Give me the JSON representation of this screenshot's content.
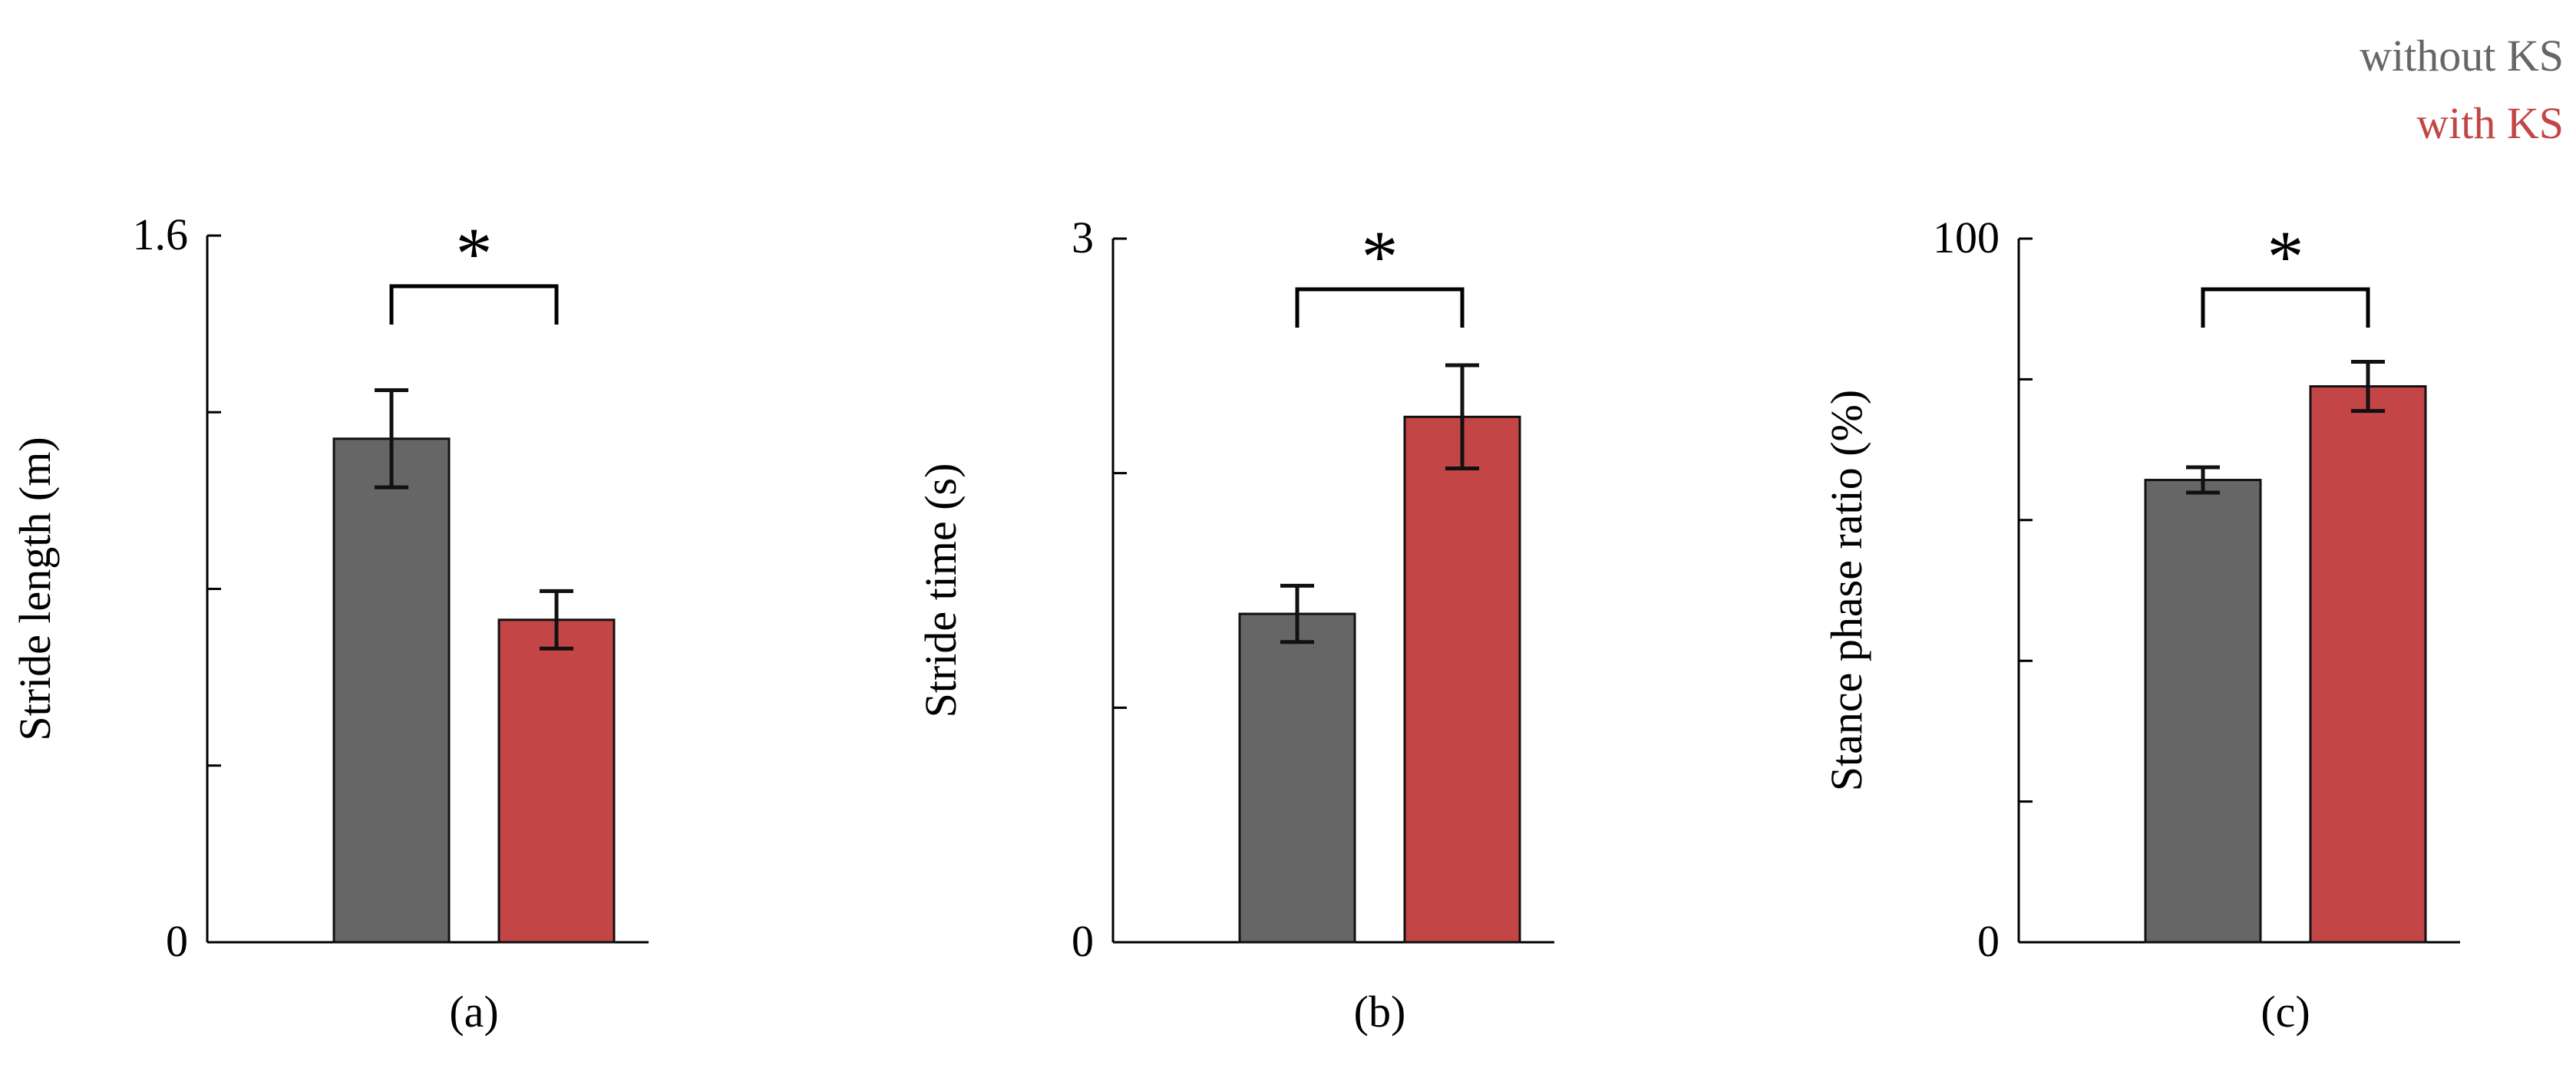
{
  "legend": {
    "items": [
      {
        "label": "without KS",
        "color": "#666666"
      },
      {
        "label": "with KS",
        "color": "#c44545"
      }
    ]
  },
  "chart_data": [
    {
      "type": "bar",
      "panel_label": "(a)",
      "categories": [
        "without KS",
        "with KS"
      ],
      "series": [
        {
          "values": [
            1.14,
            0.73
          ]
        }
      ],
      "errors": [
        0.11,
        0.065
      ],
      "ylabel": "Stride length (m)",
      "ylim": [
        0,
        1.6
      ],
      "ytick_values": [
        0,
        0.4,
        0.8,
        1.2,
        1.6
      ],
      "ytick_labels": [
        "0",
        "1.6"
      ],
      "significance": {
        "pair": [
          0,
          1
        ],
        "label": "*"
      },
      "colors": [
        "#666666",
        "#c44545"
      ],
      "grid": false
    },
    {
      "type": "bar",
      "panel_label": "(b)",
      "categories": [
        "without KS",
        "with KS"
      ],
      "series": [
        {
          "values": [
            1.4,
            2.24
          ]
        }
      ],
      "errors": [
        0.12,
        0.22
      ],
      "ylabel": "Stride time (s)",
      "ylim": [
        0,
        3
      ],
      "ytick_values": [
        0,
        1,
        2,
        3
      ],
      "ytick_labels": [
        "0",
        "3"
      ],
      "significance": {
        "pair": [
          0,
          1
        ],
        "label": "*"
      },
      "colors": [
        "#666666",
        "#c44545"
      ],
      "grid": false
    },
    {
      "type": "bar",
      "panel_label": "(c)",
      "categories": [
        "without KS",
        "with KS"
      ],
      "series": [
        {
          "values": [
            65.7,
            79
          ]
        }
      ],
      "errors": [
        1.8,
        3.5
      ],
      "ylabel": "Stance phase ratio (%)",
      "ylim": [
        0,
        100
      ],
      "ytick_values": [
        0,
        20,
        40,
        60,
        80,
        100
      ],
      "ytick_labels": [
        "0",
        "100"
      ],
      "significance": {
        "pair": [
          0,
          1
        ],
        "label": "*"
      },
      "colors": [
        "#666666",
        "#c44545"
      ],
      "grid": false
    }
  ]
}
